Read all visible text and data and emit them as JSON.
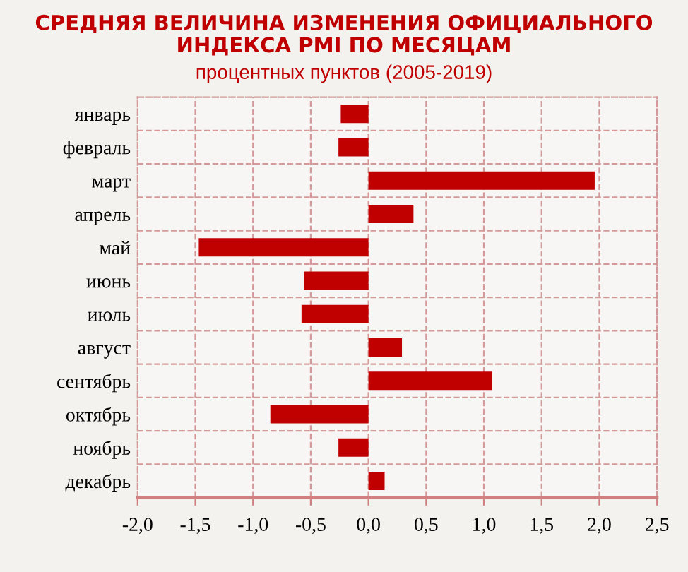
{
  "chart_data": {
    "type": "bar",
    "orientation": "horizontal",
    "title": "СРЕДНЯЯ ВЕЛИЧИНА ИЗМЕНЕНИЯ ОФИЦИАЛЬНОГО\nИНДЕКСА PMI ПО МЕСЯЦАМ",
    "subtitle": "процентных пунктов (2005-2019)",
    "categories": [
      "январь",
      "февраль",
      "март",
      "апрель",
      "май",
      "июнь",
      "июль",
      "август",
      "сентябрь",
      "октябрь",
      "ноябрь",
      "декабрь"
    ],
    "values": [
      -0.24,
      -0.26,
      1.96,
      0.39,
      -1.47,
      -0.56,
      -0.58,
      0.29,
      1.07,
      -0.85,
      -0.26,
      0.14
    ],
    "color": "#c00000",
    "xlim": [
      -2.0,
      2.5
    ],
    "xticks": [
      {
        "value": -2.0,
        "label": "-2,0"
      },
      {
        "value": -1.5,
        "label": "-1,5"
      },
      {
        "value": -1.0,
        "label": "-1,0"
      },
      {
        "value": -0.5,
        "label": "-0,5"
      },
      {
        "value": 0.0,
        "label": "0,0"
      },
      {
        "value": 0.5,
        "label": "0,5"
      },
      {
        "value": 1.0,
        "label": "1,0"
      },
      {
        "value": 1.5,
        "label": "1,5"
      },
      {
        "value": 2.0,
        "label": "2,0"
      },
      {
        "value": 2.5,
        "label": "2,5"
      }
    ],
    "grid": true
  }
}
